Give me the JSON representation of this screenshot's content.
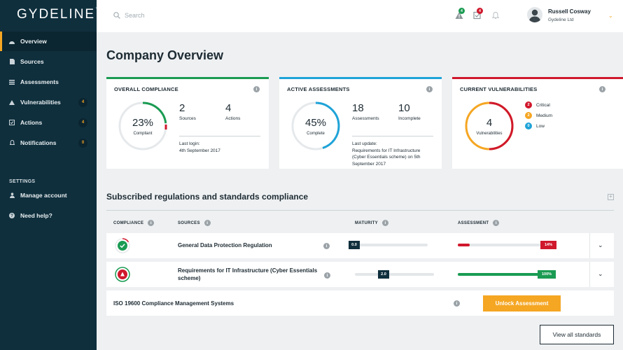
{
  "app": {
    "logo": "GYDELINE",
    "logo_mark": "™"
  },
  "sidebar": {
    "items": [
      {
        "label": "Overview",
        "icon": "dashboard-icon",
        "badge": ""
      },
      {
        "label": "Sources",
        "icon": "document-icon",
        "badge": ""
      },
      {
        "label": "Assessments",
        "icon": "list-icon",
        "badge": ""
      },
      {
        "label": "Vulnerabilities",
        "icon": "warning-icon",
        "badge": "4"
      },
      {
        "label": "Actions",
        "icon": "checkbox-icon",
        "badge": "4"
      },
      {
        "label": "Notifications",
        "icon": "bell-icon",
        "badge": "0"
      }
    ],
    "settings_heading": "SETTINGS",
    "settings_items": [
      {
        "label": "Manage account",
        "icon": "user-icon"
      },
      {
        "label": "Need help?",
        "icon": "help-icon"
      }
    ]
  },
  "header": {
    "search_placeholder": "Search",
    "alerts_badge": "4",
    "actions_badge": "4",
    "user_name": "Russell Cosway",
    "user_company": "Gydeline Ltd"
  },
  "page": {
    "title": "Company Overview"
  },
  "cards": {
    "compliance": {
      "title": "OVERALL COMPLIANCE",
      "percent": "23%",
      "percent_value": 0.23,
      "caption": "Compliant",
      "stat1_num": "2",
      "stat1_label": "Sources",
      "stat2_num": "4",
      "stat2_label": "Actions",
      "note_line1": "Last login:",
      "note_line2": "4th September 2017",
      "accent": "#1a9b52"
    },
    "assessments": {
      "title": "ACTIVE ASSESSMENTS",
      "percent": "45%",
      "percent_value": 0.45,
      "caption": "Complete",
      "stat1_num": "18",
      "stat1_label": "Assessments",
      "stat2_num": "10",
      "stat2_label": "Incomplete",
      "note_line1": "Last update:",
      "note_line2": "Requirements for IT Infrastructure",
      "note_line3": "(Cyber Essentials scheme) on 5th",
      "note_line4": "September 2017",
      "accent": "#1fa3d8"
    },
    "vulnerabilities": {
      "title": "CURRENT VULNERABILITIES",
      "count": "4",
      "caption": "Vulnerabilities",
      "levels": [
        {
          "count": "2",
          "label": "Critical",
          "color": "#d0182c"
        },
        {
          "count": "2",
          "label": "Medium",
          "color": "#f5a623"
        },
        {
          "count": "0",
          "label": "Low",
          "color": "#1fa3d8"
        }
      ],
      "accent": "#d0182c"
    }
  },
  "regulations": {
    "title": "Subscribed regulations and standards compliance",
    "columns": {
      "compliance": "COMPLIANCE",
      "sources": "SOURCES",
      "maturity": "MATURITY",
      "assessment": "ASSESSMENT"
    },
    "rows": [
      {
        "name": "General Data Protection Regulation",
        "maturity_label": "0.0",
        "maturity_value": 0.0,
        "assessment_label": "14%",
        "assessment_value": 0.14,
        "status": "compliant"
      },
      {
        "name_line1": "Requirements for IT Infrastructure (Cyber Essentials",
        "name_line2": "scheme)",
        "maturity_label": "2.0",
        "maturity_value": 0.4,
        "assessment_label": "100%",
        "assessment_value": 1.0,
        "status": "warning"
      },
      {
        "name": "ISO 19600 Compliance Management Systems",
        "button": "Unlock Assessment"
      }
    ],
    "view_all": "View all standards"
  }
}
